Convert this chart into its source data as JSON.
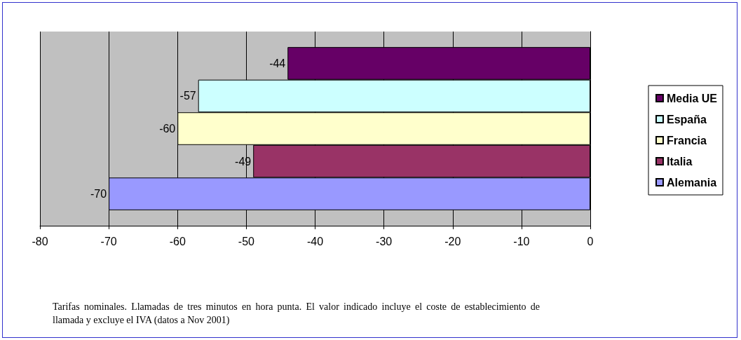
{
  "chart_data": {
    "type": "bar",
    "orientation": "horizontal",
    "categories": [
      null
    ],
    "series": [
      {
        "name": "Media UE",
        "color": "#660066",
        "values": [
          -44
        ]
      },
      {
        "name": "España",
        "color": "#ccffff",
        "values": [
          -57
        ]
      },
      {
        "name": "Francia",
        "color": "#ffffcc",
        "values": [
          -60
        ]
      },
      {
        "name": "Italia",
        "color": "#993366",
        "values": [
          -49
        ]
      },
      {
        "name": "Alemania",
        "color": "#9999ff",
        "values": [
          -70
        ]
      }
    ],
    "xlim": [
      -80,
      0
    ],
    "xticks": [
      -80,
      -70,
      -60,
      -50,
      -40,
      -30,
      -20,
      -10,
      0
    ],
    "grid": "x",
    "legend": "right",
    "data_labels": true,
    "annotations": [
      "Tarifas nominales. Llamadas de tres minutos en hora punta. El valor indicado incluye el coste de establecimiento de llamada y excluye el IVA (datos a Nov 2001)"
    ]
  }
}
